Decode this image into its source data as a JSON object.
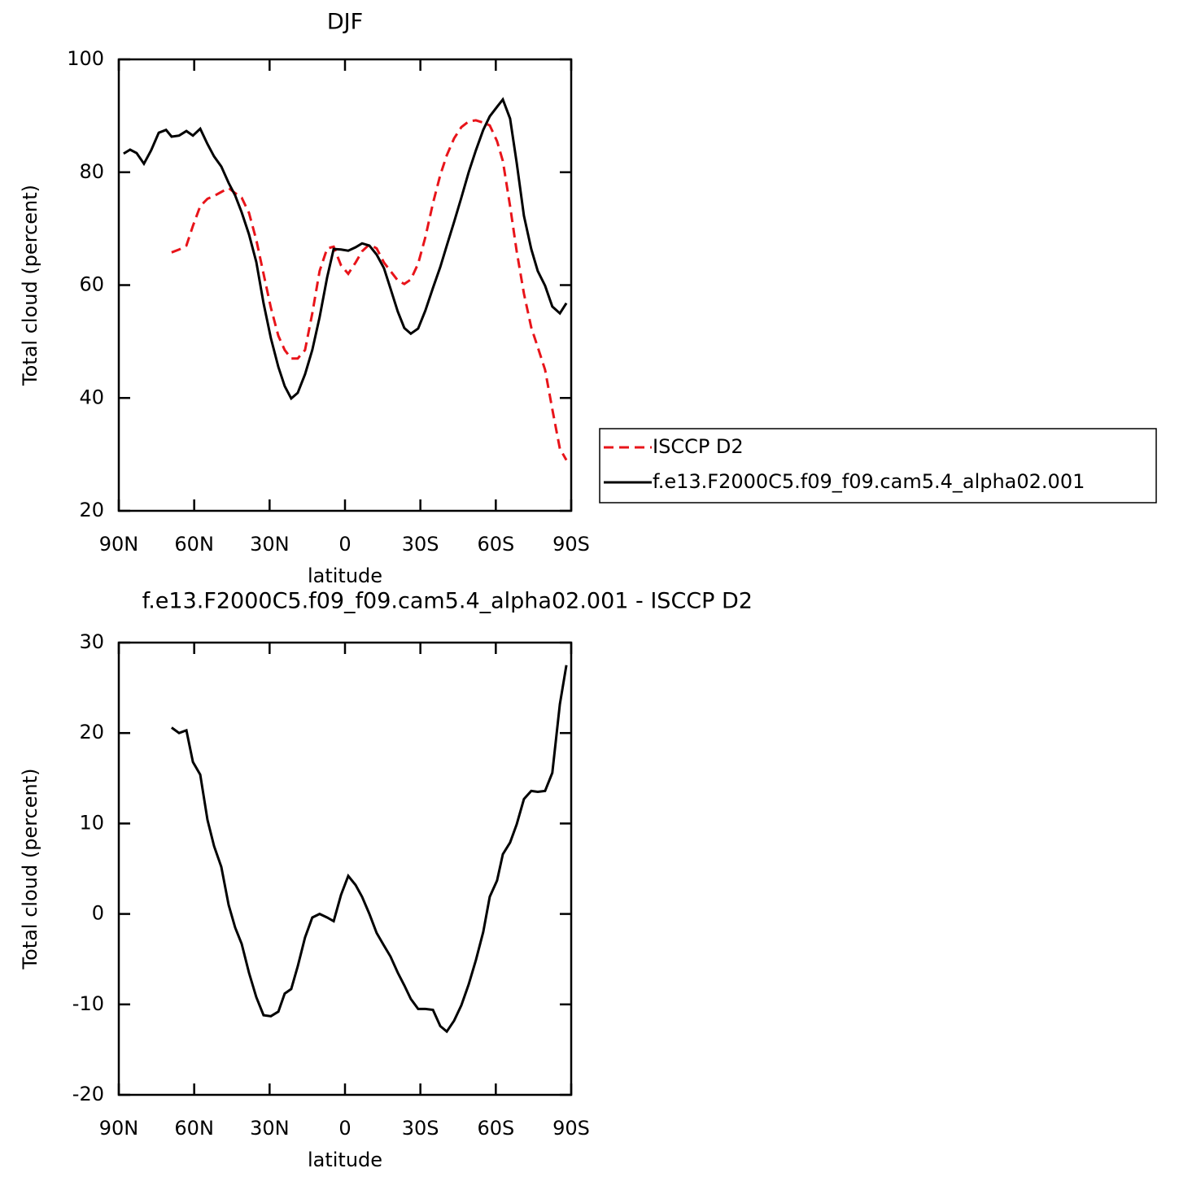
{
  "chart_data": [
    {
      "type": "line",
      "title": "DJF",
      "x_label": "latitude",
      "y_label": "Total cloud (percent)",
      "x": [
        88.1,
        85.5,
        82.9,
        80.0,
        77.1,
        74.1,
        71.2,
        69.0,
        66.0,
        63.1,
        60.5,
        57.6,
        54.7,
        52.1,
        49.2,
        46.3,
        43.7,
        41.1,
        38.2,
        35.3,
        32.4,
        29.5,
        26.5,
        24.0,
        21.4,
        18.8,
        15.9,
        13.0,
        10.1,
        7.1,
        4.5,
        1.6,
        -1.3,
        -4.2,
        -6.8,
        -9.7,
        -12.6,
        -15.5,
        -18.1,
        -21.0,
        -23.6,
        -26.2,
        -29.1,
        -32.0,
        -35.0,
        -37.9,
        -40.5,
        -43.4,
        -46.3,
        -49.2,
        -52.1,
        -55.0,
        -57.6,
        -60.5,
        -62.8,
        -65.7,
        -68.3,
        -71.2,
        -74.1,
        -76.7,
        -79.6,
        -82.5,
        -85.5,
        -88.1
      ],
      "series": [
        {
          "name": "ISCCP D2",
          "color": "#e8141a",
          "line_style": "dashed",
          "values": [
            null,
            null,
            null,
            null,
            null,
            null,
            null,
            65.8,
            66.3,
            67.0,
            70.5,
            74.0,
            75.3,
            75.8,
            76.5,
            77.2,
            76.3,
            75.5,
            72.8,
            68.0,
            62.0,
            56.0,
            51.0,
            48.5,
            47.0,
            47.0,
            48.5,
            55.0,
            62.5,
            66.5,
            66.8,
            63.5,
            62.0,
            64.0,
            66.0,
            67.2,
            66.5,
            64.0,
            62.5,
            60.8,
            60.2,
            61.0,
            63.8,
            68.5,
            74.5,
            79.5,
            83.0,
            86.0,
            88.0,
            89.0,
            89.2,
            88.8,
            88.3,
            85.5,
            82.0,
            74.0,
            66.0,
            58.5,
            52.5,
            49.0,
            45.0,
            38.0,
            31.0,
            29.0
          ]
        },
        {
          "name": "f.e13.F2000C5.f09_f09.cam5.4_alpha02.001",
          "color": "#000000",
          "line_style": "solid",
          "values": [
            83.3,
            84.0,
            83.4,
            81.5,
            83.9,
            87.0,
            87.5,
            86.3,
            86.5,
            87.3,
            86.5,
            87.7,
            85.0,
            82.8,
            81.0,
            78.1,
            75.9,
            72.9,
            69.0,
            64.1,
            56.8,
            50.6,
            45.5,
            42.1,
            39.9,
            40.9,
            44.2,
            48.5,
            54.3,
            61.4,
            66.4,
            66.3,
            66.1,
            66.7,
            67.4,
            67.0,
            65.4,
            63.0,
            59.4,
            55.3,
            52.4,
            51.4,
            52.3,
            55.5,
            59.5,
            63.2,
            67.0,
            71.2,
            75.5,
            80.0,
            83.9,
            87.5,
            89.9,
            91.6,
            92.9,
            89.5,
            81.7,
            72.3,
            66.4,
            62.5,
            59.9,
            56.2,
            55.0,
            56.8
          ]
        }
      ],
      "xlim": [
        90,
        -90
      ],
      "xticks": [
        {
          "value": 90,
          "label": "90N"
        },
        {
          "value": 60,
          "label": "60N"
        },
        {
          "value": 30,
          "label": "30N"
        },
        0,
        {
          "value": -30,
          "label": "30S"
        },
        {
          "value": -60,
          "label": "60S"
        },
        {
          "value": -90,
          "label": "90S"
        }
      ],
      "ylim": [
        20,
        100
      ],
      "yticks": [
        20,
        40,
        60,
        80,
        100
      ]
    },
    {
      "type": "line",
      "title": "f.e13.F2000C5.f09_f09.cam5.4_alpha02.001 - ISCCP D2",
      "x_label": "latitude",
      "y_label": "Total cloud (percent)",
      "x": [
        88.1,
        85.5,
        82.9,
        80.0,
        77.1,
        74.1,
        71.2,
        69.0,
        66.0,
        63.1,
        60.5,
        57.6,
        54.7,
        52.1,
        49.2,
        46.3,
        43.7,
        41.1,
        38.2,
        35.3,
        32.4,
        29.5,
        26.5,
        24.0,
        21.4,
        18.8,
        15.9,
        13.0,
        10.1,
        7.1,
        4.5,
        1.6,
        -1.3,
        -4.2,
        -6.8,
        -9.7,
        -12.6,
        -15.5,
        -18.1,
        -21.0,
        -23.6,
        -26.2,
        -29.1,
        -32.0,
        -35.0,
        -37.9,
        -40.5,
        -43.4,
        -46.3,
        -49.2,
        -52.1,
        -55.0,
        -57.6,
        -60.5,
        -62.8,
        -65.7,
        -68.3,
        -71.2,
        -74.1,
        -76.7,
        -79.6,
        -82.5,
        -85.5,
        -88.1
      ],
      "series": [
        {
          "color": "#000000",
          "line_style": "solid",
          "values": [
            null,
            null,
            null,
            null,
            null,
            null,
            null,
            20.6,
            20.0,
            20.3,
            16.8,
            15.4,
            10.4,
            7.5,
            5.2,
            1.0,
            -1.5,
            -3.3,
            -6.5,
            -9.2,
            -11.2,
            -11.3,
            -10.8,
            -8.8,
            -8.3,
            -5.8,
            -2.6,
            -0.4,
            0.0,
            -0.4,
            -0.8,
            2.1,
            4.2,
            3.2,
            1.9,
            0.0,
            -2.1,
            -3.5,
            -4.7,
            -6.5,
            -7.9,
            -9.4,
            -10.5,
            -10.5,
            -10.6,
            -12.4,
            -13.0,
            -11.8,
            -10.1,
            -7.8,
            -5.1,
            -2.0,
            1.9,
            3.7,
            6.6,
            7.9,
            9.9,
            12.7,
            13.6,
            13.5,
            13.6,
            15.6,
            23.2,
            27.5
          ]
        }
      ],
      "xlim": [
        90,
        -90
      ],
      "xticks": [
        {
          "value": 90,
          "label": "90N"
        },
        {
          "value": 60,
          "label": "60N"
        },
        {
          "value": 30,
          "label": "30N"
        },
        0,
        {
          "value": -30,
          "label": "30S"
        },
        {
          "value": -60,
          "label": "60S"
        },
        {
          "value": -90,
          "label": "90S"
        }
      ],
      "ylim": [
        -20,
        30
      ],
      "yticks": [
        -20,
        -10,
        0,
        10,
        20,
        30
      ]
    }
  ]
}
